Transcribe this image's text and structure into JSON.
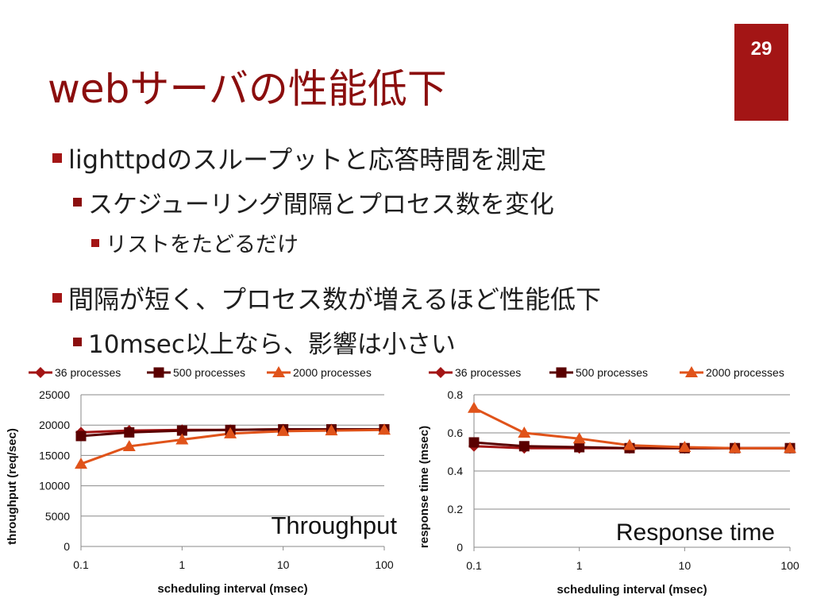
{
  "slide": {
    "title": "webサーバの性能低下",
    "page_number": "29",
    "colors": {
      "accent": "#a31515",
      "title": "#8b0e0e"
    }
  },
  "bullets": [
    {
      "level": 1,
      "text": "lighttpdのスループットと応答時間を測定"
    },
    {
      "level": 2,
      "text": "スケジューリング間隔とプロセス数を変化"
    },
    {
      "level": 3,
      "text": "リストをたどるだけ"
    },
    {
      "level": 1,
      "text": "間隔が短く、プロセス数が増えるほど性能低下"
    },
    {
      "level": 2,
      "text": "10msec以上なら、影響は小さい"
    }
  ],
  "chart_data": [
    {
      "type": "line",
      "annotation": "Throughput",
      "xlabel": "scheduling interval (msec)",
      "ylabel": "throughput (req/sec)",
      "x_scale": "log",
      "xlim": [
        0.1,
        100
      ],
      "ylim": [
        0,
        25000
      ],
      "x_ticks": [
        "0.1",
        "1",
        "10",
        "100"
      ],
      "y_ticks": [
        "0",
        "5000",
        "10000",
        "15000",
        "20000",
        "25000"
      ],
      "grid": "horizontal",
      "legend": "top",
      "x": [
        0.1,
        0.3,
        1,
        3,
        10,
        30,
        100
      ],
      "series": [
        {
          "name": "36 processes",
          "color": "#a31515",
          "marker": "diamond",
          "values": [
            18800,
            19100,
            19200,
            19200,
            19300,
            19300,
            19300
          ]
        },
        {
          "name": "500 processes",
          "color": "#5a0000",
          "marker": "square",
          "values": [
            18200,
            18800,
            19100,
            19200,
            19300,
            19300,
            19300
          ]
        },
        {
          "name": "2000 processes",
          "color": "#e0531a",
          "marker": "triangle",
          "values": [
            13600,
            16500,
            17600,
            18600,
            19000,
            19100,
            19200
          ]
        }
      ]
    },
    {
      "type": "line",
      "annotation": "Response time",
      "xlabel": "scheduling interval (msec)",
      "ylabel": "response time (msec)",
      "x_scale": "log",
      "xlim": [
        0.1,
        100
      ],
      "ylim": [
        0,
        0.8
      ],
      "x_ticks": [
        "0.1",
        "1",
        "10",
        "100"
      ],
      "y_ticks": [
        "0",
        "0.2",
        "0.4",
        "0.6",
        "0.8"
      ],
      "grid": "horizontal",
      "legend": "top",
      "x": [
        0.1,
        0.3,
        1,
        3,
        10,
        30,
        100
      ],
      "series": [
        {
          "name": "36 processes",
          "color": "#a31515",
          "marker": "diamond",
          "values": [
            0.53,
            0.52,
            0.52,
            0.52,
            0.52,
            0.52,
            0.52
          ]
        },
        {
          "name": "500 processes",
          "color": "#5a0000",
          "marker": "square",
          "values": [
            0.55,
            0.53,
            0.525,
            0.52,
            0.52,
            0.52,
            0.52
          ]
        },
        {
          "name": "2000 processes",
          "color": "#e0531a",
          "marker": "triangle",
          "values": [
            0.73,
            0.6,
            0.57,
            0.535,
            0.525,
            0.52,
            0.52
          ]
        }
      ]
    }
  ]
}
